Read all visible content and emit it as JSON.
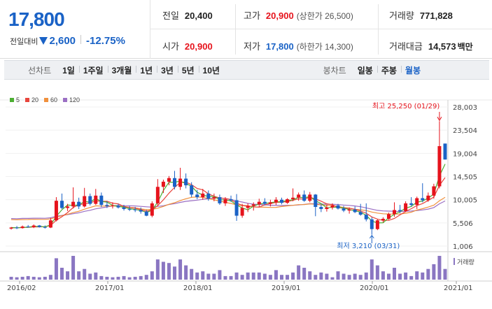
{
  "quote": {
    "price": "17,800",
    "change_label": "전일대비",
    "change": "2,600",
    "change_pct": "-12.75%",
    "prev_close_label": "전일",
    "prev_close": "20,400",
    "open_label": "시가",
    "open": "20,900",
    "high_label": "고가",
    "high": "20,900",
    "high_limit": "(상한가 26,500)",
    "low_label": "저가",
    "low": "17,800",
    "low_limit": "(하한가 14,300)",
    "volume_label": "거래량",
    "volume": "771,828",
    "amount_label": "거래대금",
    "amount": "14,573",
    "amount_unit": "백만"
  },
  "tabs": {
    "line_label": "선차트",
    "line_items": [
      "1일",
      "1주일",
      "3개월",
      "1년",
      "3년",
      "5년",
      "10년"
    ],
    "candle_label": "봉차트",
    "candle_items": [
      "일봉",
      "주봉",
      "월봉"
    ],
    "active_candle": "월봉"
  },
  "colors": {
    "up": "#e6131c",
    "down": "#1a62c6",
    "ma5": "#4caf32",
    "ma20": "#e8453c",
    "ma60": "#f0903c",
    "ma120": "#9b6fc4",
    "volume": "#8a76c2"
  },
  "chart_data": {
    "type": "candlestick",
    "legend": [
      "5",
      "20",
      "60",
      "120"
    ],
    "y_ticks": [
      "28,003",
      "23,504",
      "19,004",
      "14,505",
      "10,005",
      "5,506",
      "1,006"
    ],
    "ylim": [
      1006,
      28003
    ],
    "x_ticks": [
      "2016/02",
      "2017/01",
      "2018/01",
      "2019/01",
      "2020/01",
      "2021/01"
    ],
    "high_note": "최고 25,250 (01/29)",
    "low_note": "최저 3,210 (03/31)",
    "volume_label": "거래량",
    "candles": [
      [
        4400,
        4700,
        4200,
        4600
      ],
      [
        4600,
        4900,
        4300,
        4500
      ],
      [
        4500,
        5000,
        4400,
        4800
      ],
      [
        4800,
        5100,
        4600,
        4700
      ],
      [
        4700,
        5200,
        4500,
        5000
      ],
      [
        5000,
        5100,
        4600,
        4700
      ],
      [
        4700,
        5000,
        4400,
        4600
      ],
      [
        4600,
        6500,
        4500,
        6000
      ],
      [
        6000,
        10500,
        5800,
        9800
      ],
      [
        9800,
        11200,
        8200,
        8400
      ],
      [
        8400,
        9200,
        7800,
        8700
      ],
      [
        8700,
        12400,
        8300,
        9600
      ],
      [
        9600,
        10400,
        8200,
        8700
      ],
      [
        8700,
        12300,
        8500,
        10700
      ],
      [
        10700,
        11200,
        8900,
        9200
      ],
      [
        9200,
        12100,
        9000,
        10800
      ],
      [
        10800,
        11400,
        8600,
        9000
      ],
      [
        9000,
        9700,
        8400,
        8800
      ],
      [
        8800,
        9500,
        8300,
        8900
      ],
      [
        8800,
        9200,
        8300,
        8500
      ],
      [
        8500,
        9000,
        7900,
        8200
      ],
      [
        8200,
        8800,
        7800,
        8100
      ],
      [
        8100,
        8600,
        7600,
        8000
      ],
      [
        8000,
        8500,
        7300,
        7700
      ],
      [
        7700,
        8000,
        6800,
        6900
      ],
      [
        6900,
        9700,
        6600,
        9300
      ],
      [
        9300,
        14000,
        8900,
        12500
      ],
      [
        12500,
        13900,
        11300,
        13500
      ],
      [
        13500,
        14600,
        12800,
        14200
      ],
      [
        14200,
        15600,
        12000,
        12500
      ],
      [
        12500,
        16200,
        11900,
        14100
      ],
      [
        14100,
        15100,
        12200,
        12800
      ],
      [
        12800,
        13400,
        10500,
        11000
      ],
      [
        11000,
        11900,
        10100,
        10500
      ],
      [
        10500,
        12100,
        10000,
        11200
      ],
      [
        11200,
        11800,
        9800,
        10200
      ],
      [
        10200,
        11200,
        9700,
        10500
      ],
      [
        10500,
        11000,
        9000,
        9300
      ],
      [
        9300,
        10500,
        8800,
        10100
      ],
      [
        10100,
        10800,
        9600,
        9900
      ],
      [
        9900,
        11100,
        5900,
        6900
      ],
      [
        6900,
        9200,
        6500,
        8400
      ],
      [
        8400,
        9300,
        7600,
        8800
      ],
      [
        8800,
        9500,
        7900,
        9100
      ],
      [
        9100,
        10200,
        8600,
        9600
      ],
      [
        9600,
        10300,
        8900,
        9200
      ],
      [
        9200,
        10000,
        8700,
        9500
      ],
      [
        9500,
        10500,
        9000,
        10000
      ],
      [
        10000,
        10400,
        9100,
        9400
      ],
      [
        9400,
        10300,
        9200,
        10100
      ],
      [
        10100,
        12200,
        9700,
        10400
      ],
      [
        10400,
        11400,
        9800,
        11000
      ],
      [
        11000,
        11800,
        9600,
        9800
      ],
      [
        9800,
        11500,
        9500,
        11000
      ],
      [
        11000,
        11100,
        6800,
        8600
      ],
      [
        8600,
        9100,
        7600,
        8200
      ],
      [
        8200,
        9000,
        7700,
        8500
      ],
      [
        8500,
        9300,
        8100,
        8900
      ],
      [
        8900,
        9200,
        8100,
        8300
      ],
      [
        8300,
        8800,
        7600,
        7900
      ],
      [
        7900,
        8500,
        7300,
        8100
      ],
      [
        8100,
        8700,
        7400,
        7600
      ],
      [
        7600,
        9200,
        6900,
        7100
      ],
      [
        7100,
        9300,
        5800,
        6200
      ],
      [
        6200,
        6600,
        3210,
        4300
      ],
      [
        4300,
        6200,
        4100,
        6000
      ],
      [
        6000,
        6600,
        5600,
        6300
      ],
      [
        6300,
        7500,
        6100,
        7200
      ],
      [
        7200,
        9500,
        6700,
        8000
      ],
      [
        8000,
        9000,
        7400,
        7800
      ],
      [
        7800,
        9700,
        7600,
        9300
      ],
      [
        9300,
        10500,
        8700,
        9000
      ],
      [
        9000,
        10600,
        8200,
        10300
      ],
      [
        10300,
        13200,
        9500,
        9900
      ],
      [
        9900,
        11400,
        9600,
        10800
      ],
      [
        10800,
        13100,
        10200,
        12600
      ],
      [
        12600,
        25250,
        12200,
        20400
      ],
      [
        20900,
        20900,
        17800,
        17800
      ]
    ],
    "volumes": [
      0.12,
      0.1,
      0.12,
      0.15,
      0.12,
      0.1,
      0.12,
      0.2,
      0.9,
      0.5,
      0.35,
      1.0,
      0.35,
      0.45,
      0.25,
      0.3,
      0.15,
      0.12,
      0.1,
      0.12,
      0.15,
      0.1,
      0.12,
      0.15,
      0.2,
      0.35,
      0.85,
      0.75,
      0.7,
      0.55,
      0.85,
      0.6,
      0.45,
      0.3,
      0.35,
      0.25,
      0.25,
      0.4,
      0.15,
      0.15,
      0.3,
      0.2,
      0.3,
      0.3,
      0.3,
      0.25,
      0.2,
      0.4,
      0.2,
      0.2,
      0.3,
      0.6,
      0.5,
      0.35,
      0.2,
      0.3,
      0.25,
      0.1,
      0.35,
      0.25,
      0.2,
      0.25,
      0.2,
      0.3,
      0.85,
      0.6,
      0.35,
      0.25,
      0.5,
      0.25,
      0.3,
      0.15,
      0.35,
      0.3,
      0.45,
      0.65,
      1.0,
      0.45
    ]
  }
}
